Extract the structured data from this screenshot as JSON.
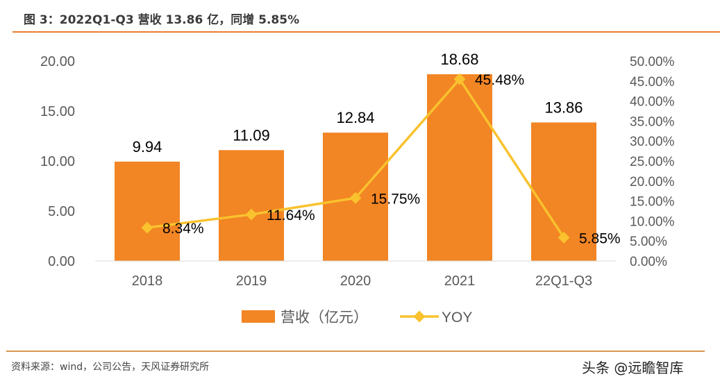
{
  "title": "图 3：2022Q1-Q3 营收 13.86 亿，同增 5.85%",
  "source": "资料来源：wind，公司公告，天风证券研究所",
  "watermark": "头条 @远瞻智库",
  "chart_data": {
    "type": "bar+line",
    "categories": [
      "2018",
      "2019",
      "2020",
      "2021",
      "22Q1-Q3"
    ],
    "series": [
      {
        "name": "营收（亿元）",
        "type": "bar",
        "axis": "left",
        "values": [
          9.94,
          11.09,
          12.84,
          18.68,
          13.86
        ],
        "labels": [
          "9.94",
          "11.09",
          "12.84",
          "18.68",
          "13.86"
        ],
        "color": "#f28524"
      },
      {
        "name": "YOY",
        "type": "line",
        "axis": "right",
        "values": [
          8.34,
          11.64,
          15.75,
          45.48,
          5.85
        ],
        "labels": [
          "8.34%",
          "11.64%",
          "15.75%",
          "45.48%",
          "5.85%"
        ],
        "color": "#f9c22e"
      }
    ],
    "ylim": [
      0,
      20
    ],
    "yticks": [
      "0.00",
      "5.00",
      "10.00",
      "15.00",
      "20.00"
    ],
    "y2lim": [
      0,
      50
    ],
    "y2ticks": [
      "0.00%",
      "5.00%",
      "10.00%",
      "15.00%",
      "20.00%",
      "25.00%",
      "30.00%",
      "35.00%",
      "40.00%",
      "45.00%",
      "50.00%"
    ],
    "legend": "bottom",
    "grid": false
  }
}
